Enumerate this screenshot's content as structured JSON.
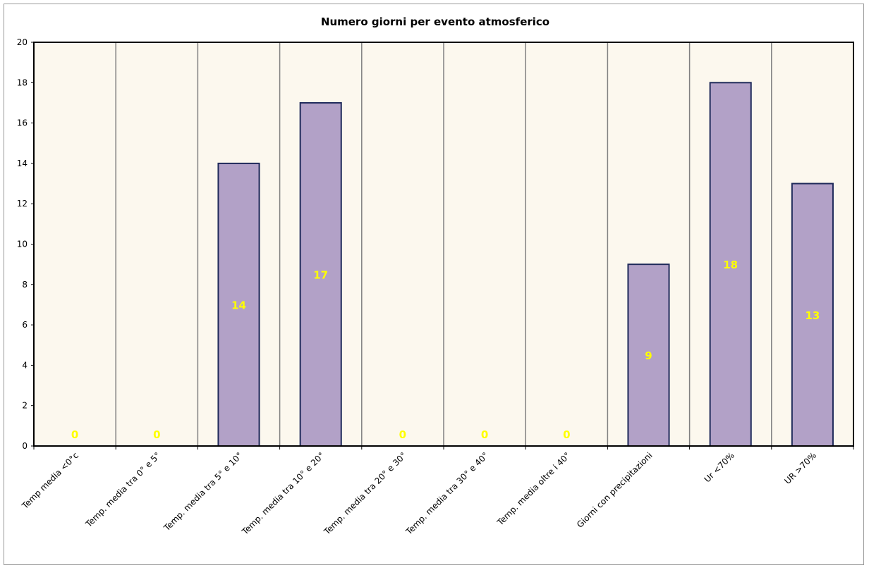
{
  "chart_data": {
    "type": "bar",
    "title": "Numero giorni  per evento atmosferico",
    "categories": [
      "Temp media <0°c",
      "Temp. media tra 0° e 5°",
      "Temp. media tra 5° e 10°",
      "Temp. media tra 10° e 20°",
      "Temp. media tra 20° e 30°",
      "Temp. media tra 30° e 40°",
      "Temp. media oltre i 40°",
      "Giorni con precipitazioni",
      "Ur  <70%",
      "UR >70%"
    ],
    "values": [
      0,
      0,
      14,
      17,
      0,
      0,
      0,
      9,
      18,
      13
    ],
    "data_labels": [
      "0",
      "0",
      "14",
      "17",
      "0",
      "0",
      "0",
      "9",
      "18",
      "13"
    ],
    "yticks": [
      "0",
      "2",
      "4",
      "6",
      "8",
      "10",
      "12",
      "14",
      "16",
      "18",
      "20"
    ],
    "ylim": [
      0,
      20
    ],
    "grid": "vertical",
    "legend": "none",
    "colors": {
      "bar_fill": "#b2a1c7",
      "bar_stroke": "#1f2a5a",
      "plot_background": "#fcf8ee",
      "label_color": "#ffff00",
      "gridline": "#808080"
    }
  }
}
